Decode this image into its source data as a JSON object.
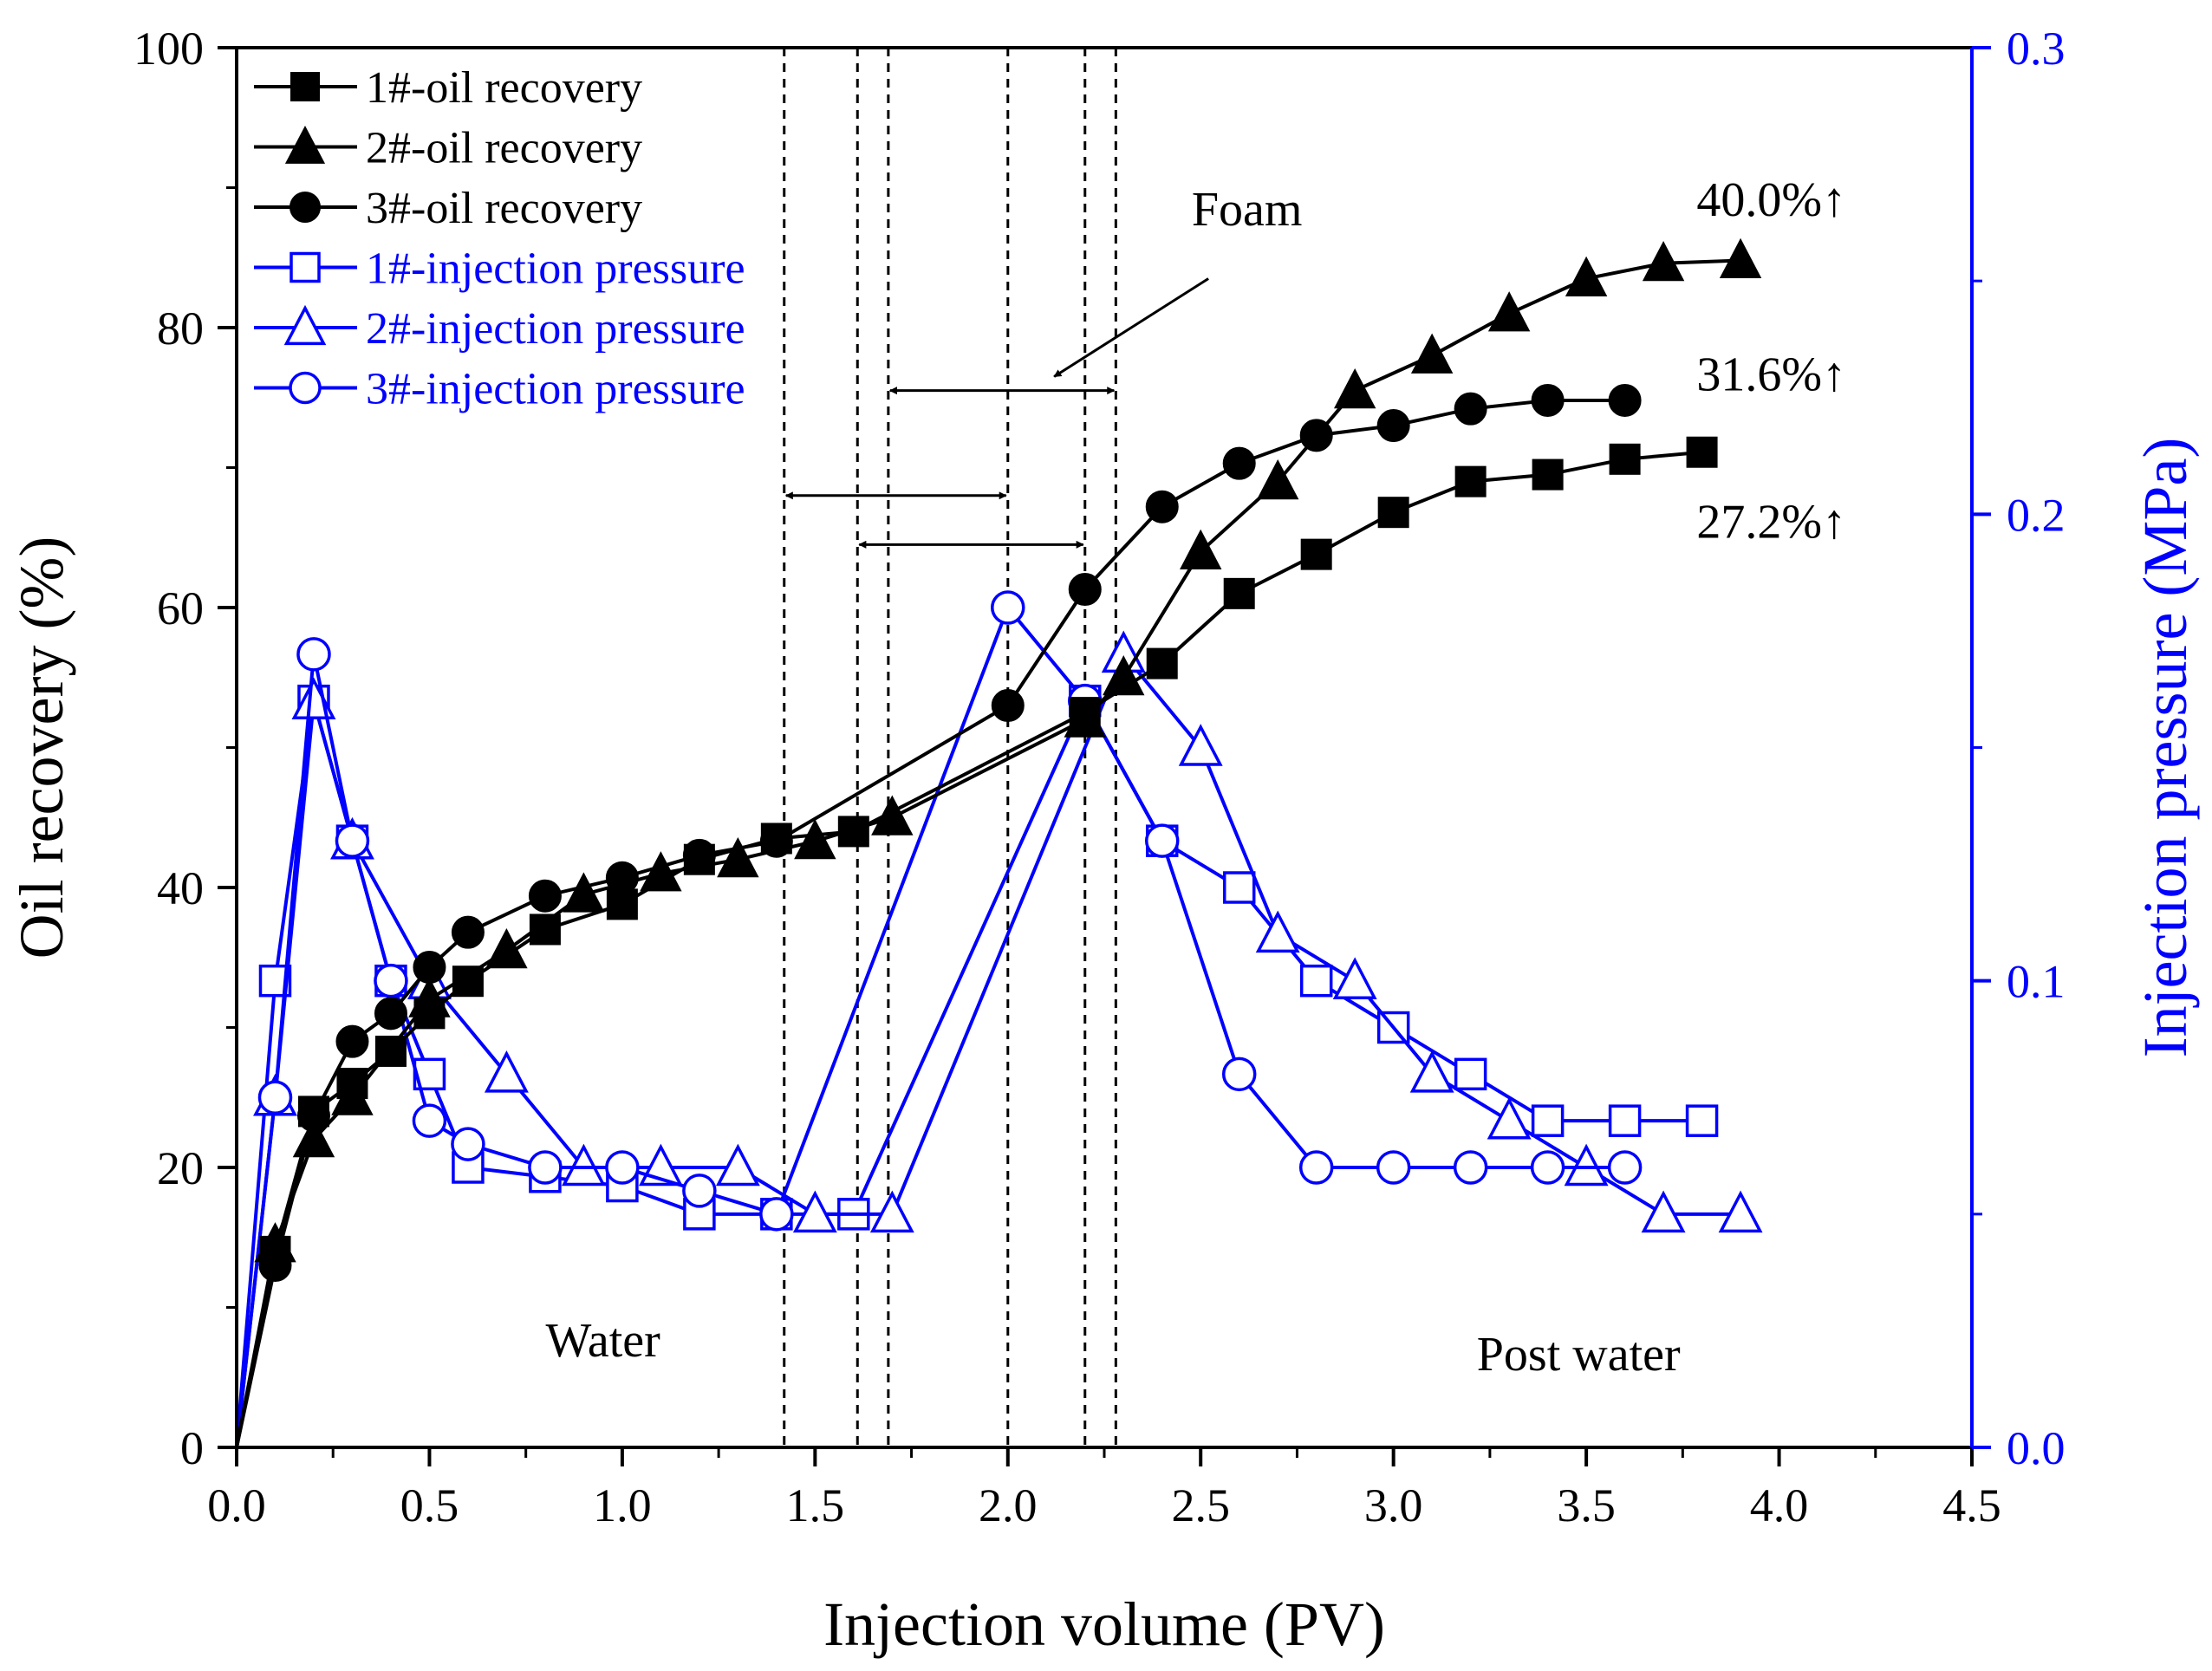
{
  "chart_data": {
    "type": "line",
    "xlabel": "Injection volume (PV)",
    "ylabel": "Oil recovery (%)",
    "y2label": "Injection pressure (MPa)",
    "xlim": [
      0.0,
      4.5
    ],
    "ylim": [
      0,
      100
    ],
    "y2lim": [
      0.0,
      0.3
    ],
    "xticks": [
      "0.0",
      "0.5",
      "1.0",
      "1.5",
      "2.0",
      "2.5",
      "3.0",
      "3.5",
      "4.0",
      "4.5"
    ],
    "yticks": [
      "0",
      "20",
      "40",
      "60",
      "80",
      "100"
    ],
    "y2ticks": [
      "0.0",
      "0.1",
      "0.2",
      "0.3"
    ],
    "colors": {
      "recovery": "#000000",
      "pressure": "#0000ff"
    },
    "legend_position": "top-left",
    "series": [
      {
        "name": "1#-oil recovery",
        "axis": "left",
        "marker": "square",
        "filled": true,
        "x": [
          0,
          0.1,
          0.2,
          0.3,
          0.4,
          0.5,
          0.6,
          0.8,
          1.0,
          1.2,
          1.4,
          1.6,
          2.2,
          2.4,
          2.6,
          2.8,
          3.0,
          3.2,
          3.4,
          3.6,
          3.8
        ],
        "y": [
          0,
          14,
          24,
          26,
          28.3,
          31,
          33.3,
          37,
          38.8,
          42,
          43.5,
          44,
          52.5,
          56,
          61,
          63.8,
          66.8,
          69,
          69.5,
          70.6,
          71.1
        ]
      },
      {
        "name": "2#-oil recovery",
        "axis": "left",
        "marker": "triangle",
        "filled": true,
        "x": [
          0,
          0.1,
          0.2,
          0.3,
          0.5,
          0.7,
          0.9,
          1.1,
          1.3,
          1.5,
          1.7,
          2.2,
          2.3,
          2.5,
          2.7,
          2.9,
          3.1,
          3.3,
          3.5,
          3.7,
          3.9
        ],
        "y": [
          0,
          14.5,
          22,
          25,
          32,
          35.5,
          39.5,
          41,
          42,
          43.3,
          45,
          52,
          55,
          64,
          69,
          75.5,
          78,
          81,
          83.5,
          84.6,
          84.8
        ]
      },
      {
        "name": "3#-oil recovery",
        "axis": "left",
        "marker": "circle",
        "filled": true,
        "x": [
          0,
          0.1,
          0.2,
          0.3,
          0.4,
          0.5,
          0.6,
          0.8,
          1.0,
          1.2,
          1.4,
          2.0,
          2.2,
          2.4,
          2.6,
          2.8,
          3.0,
          3.2,
          3.4,
          3.6
        ],
        "y": [
          0,
          13,
          23.7,
          29,
          31,
          34.3,
          36.8,
          39.4,
          40.7,
          42.3,
          43.3,
          53,
          61.3,
          67.2,
          70.3,
          72.3,
          73,
          74.2,
          74.8,
          74.8
        ]
      },
      {
        "name": "1#-injection pressure",
        "axis": "right",
        "marker": "square",
        "filled": false,
        "x": [
          0,
          0.1,
          0.2,
          0.3,
          0.4,
          0.5,
          0.6,
          0.8,
          1.0,
          1.2,
          1.4,
          1.6,
          2.2,
          2.4,
          2.6,
          2.8,
          3.0,
          3.2,
          3.4,
          3.6,
          3.8
        ],
        "y": [
          0,
          0.1,
          0.16,
          0.13,
          0.1,
          0.08,
          0.06,
          0.058,
          0.056,
          0.05,
          0.05,
          0.05,
          0.16,
          0.13,
          0.12,
          0.1,
          0.09,
          0.08,
          0.07,
          0.07,
          0.07
        ]
      },
      {
        "name": "2#-injection pressure",
        "axis": "right",
        "marker": "triangle",
        "filled": false,
        "x": [
          0,
          0.1,
          0.2,
          0.3,
          0.5,
          0.7,
          0.9,
          1.1,
          1.3,
          1.5,
          1.7,
          2.3,
          2.5,
          2.7,
          2.9,
          3.1,
          3.3,
          3.5,
          3.7,
          3.9
        ],
        "y": [
          0,
          0.075,
          0.16,
          0.13,
          0.1,
          0.08,
          0.06,
          0.06,
          0.06,
          0.05,
          0.05,
          0.17,
          0.15,
          0.11,
          0.1,
          0.08,
          0.07,
          0.06,
          0.05,
          0.05
        ]
      },
      {
        "name": "3#-injection pressure",
        "axis": "right",
        "marker": "circle",
        "filled": false,
        "x": [
          0,
          0.1,
          0.2,
          0.3,
          0.4,
          0.5,
          0.6,
          0.8,
          1.0,
          1.2,
          1.4,
          2.0,
          2.2,
          2.4,
          2.6,
          2.8,
          3.0,
          3.2,
          3.4,
          3.6
        ],
        "y": [
          0,
          0.075,
          0.17,
          0.13,
          0.1,
          0.07,
          0.065,
          0.06,
          0.06,
          0.055,
          0.05,
          0.18,
          0.16,
          0.13,
          0.08,
          0.06,
          0.06,
          0.06,
          0.06,
          0.06
        ]
      }
    ],
    "vlines": [
      1.42,
      1.61,
      1.69,
      2.0,
      2.2,
      2.28
    ],
    "intervals": [
      {
        "from": 1.42,
        "to": 2.0,
        "y": 68
      },
      {
        "from": 1.61,
        "to": 2.2,
        "y": 64.5
      },
      {
        "from": 1.69,
        "to": 2.28,
        "y": 75.5
      }
    ],
    "annotations": [
      {
        "text": "Foam",
        "x": 2.62,
        "y": 87.3,
        "anchor": "middle"
      },
      {
        "text": "40.0%↑",
        "x": 3.98,
        "y": 88,
        "anchor": "middle"
      },
      {
        "text": "31.6%↑",
        "x": 3.98,
        "y": 75.5,
        "anchor": "middle"
      },
      {
        "text": "27.2%↑",
        "x": 3.98,
        "y": 65,
        "anchor": "middle"
      },
      {
        "text": "Water",
        "x": 0.95,
        "y": 6.5,
        "anchor": "middle"
      },
      {
        "text": "Post water",
        "x": 3.48,
        "y": 5.5,
        "anchor": "middle"
      }
    ],
    "foam_arrow": {
      "from": [
        2.52,
        83.5
      ],
      "to": [
        2.12,
        76.5
      ]
    }
  }
}
